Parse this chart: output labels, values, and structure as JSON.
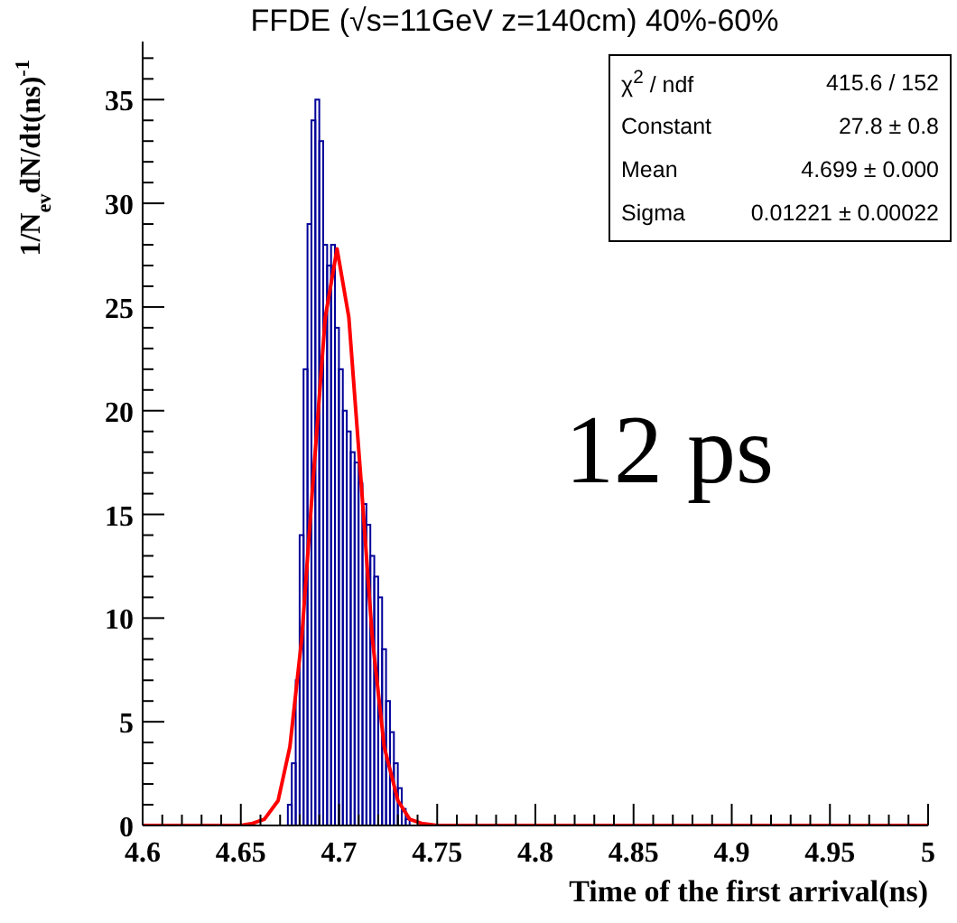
{
  "chart_data": {
    "type": "histogram",
    "title": "FFDE (√s=11GeV z=140cm) 40%-60%",
    "xlabel": "Time of the first arrival(ns)",
    "ylabel": "1/N$_{ev}$dN/dt(ns)$^{-1}$",
    "series": [
      {
        "type": "histogram",
        "color": "#000099",
        "bins": [
          4.674,
          4.676,
          4.678,
          4.68,
          4.682,
          4.684,
          4.686,
          4.688,
          4.69,
          4.692,
          4.694,
          4.696,
          4.698,
          4.7,
          4.702,
          4.704,
          4.706,
          4.708,
          4.71,
          4.712,
          4.714,
          4.716,
          4.718,
          4.72,
          4.722,
          4.724,
          4.726,
          4.728,
          4.73,
          4.732,
          4.734,
          4.736
        ],
        "values": [
          1,
          3,
          7,
          14,
          22,
          29,
          34,
          35,
          33,
          28,
          27,
          28,
          24,
          22,
          20,
          19,
          18,
          17.5,
          16.5,
          15.5,
          14.5,
          13,
          12,
          11,
          8.5,
          6,
          4.5,
          3,
          1.8,
          0.8,
          0.3
        ]
      },
      {
        "type": "line",
        "color": "#ff0000",
        "x": [
          4.6,
          4.65,
          4.656,
          4.662,
          4.669,
          4.675,
          4.681,
          4.687,
          4.693,
          4.699,
          4.705,
          4.711,
          4.717,
          4.723,
          4.73,
          4.736,
          4.742,
          4.75,
          5
        ],
        "values": [
          0,
          0,
          0.1,
          0.3,
          1.2,
          3.8,
          9,
          16.9,
          24.5,
          27.8,
          24.5,
          16.9,
          9,
          3.8,
          1.2,
          0.3,
          0.1,
          0,
          0
        ]
      }
    ],
    "xlim": [
      4.6,
      5
    ],
    "xticks": [
      4.6,
      {
        "value": 4.61,
        "label": null
      },
      {
        "value": 4.62,
        "label": null
      },
      {
        "value": 4.63,
        "label": null
      },
      {
        "value": 4.64,
        "label": null
      },
      4.65,
      {
        "value": 4.66,
        "label": null
      },
      {
        "value": 4.67,
        "label": null
      },
      {
        "value": 4.68,
        "label": null
      },
      {
        "value": 4.69,
        "label": null
      },
      4.7,
      {
        "value": 4.71,
        "label": null
      },
      {
        "value": 4.72,
        "label": null
      },
      {
        "value": 4.73,
        "label": null
      },
      {
        "value": 4.74,
        "label": null
      },
      4.75,
      {
        "value": 4.76,
        "label": null
      },
      {
        "value": 4.77,
        "label": null
      },
      {
        "value": 4.78,
        "label": null
      },
      {
        "value": 4.79,
        "label": null
      },
      4.8,
      {
        "value": 4.81,
        "label": null
      },
      {
        "value": 4.82,
        "label": null
      },
      {
        "value": 4.83,
        "label": null
      },
      {
        "value": 4.84,
        "label": null
      },
      4.85,
      {
        "value": 4.86,
        "label": null
      },
      {
        "value": 4.87,
        "label": null
      },
      {
        "value": 4.88,
        "label": null
      },
      {
        "value": 4.89,
        "label": null
      },
      4.9,
      {
        "value": 4.91,
        "label": null
      },
      {
        "value": 4.92,
        "label": null
      },
      {
        "value": 4.93,
        "label": null
      },
      {
        "value": 4.94,
        "label": null
      },
      4.95,
      {
        "value": 4.96,
        "label": null
      },
      {
        "value": 4.97,
        "label": null
      },
      {
        "value": 4.98,
        "label": null
      },
      {
        "value": 4.99,
        "label": null
      },
      5
    ],
    "ylim": [
      0,
      37.8
    ],
    "yticks": [
      0,
      {
        "value": 1,
        "label": null
      },
      {
        "value": 2,
        "label": null
      },
      {
        "value": 3,
        "label": null
      },
      {
        "value": 4,
        "label": null
      },
      5,
      {
        "value": 6,
        "label": null
      },
      {
        "value": 7,
        "label": null
      },
      {
        "value": 8,
        "label": null
      },
      {
        "value": 9,
        "label": null
      },
      10,
      {
        "value": 11,
        "label": null
      },
      {
        "value": 12,
        "label": null
      },
      {
        "value": 13,
        "label": null
      },
      {
        "value": 14,
        "label": null
      },
      15,
      {
        "value": 16,
        "label": null
      },
      {
        "value": 17,
        "label": null
      },
      {
        "value": 18,
        "label": null
      },
      {
        "value": 19,
        "label": null
      },
      20,
      {
        "value": 21,
        "label": null
      },
      {
        "value": 22,
        "label": null
      },
      {
        "value": 23,
        "label": null
      },
      {
        "value": 24,
        "label": null
      },
      25,
      {
        "value": 26,
        "label": null
      },
      {
        "value": 27,
        "label": null
      },
      {
        "value": 28,
        "label": null
      },
      {
        "value": 29,
        "label": null
      },
      30,
      {
        "value": 31,
        "label": null
      },
      {
        "value": 32,
        "label": null
      },
      {
        "value": 33,
        "label": null
      },
      {
        "value": 34,
        "label": null
      },
      35,
      {
        "value": 36,
        "label": null
      },
      {
        "value": 37,
        "label": null
      }
    ],
    "annotations": [
      "χ$^{2}$ / ndf",
      "415.6 / 152",
      "Constant",
      "27.8 ± 0.8",
      "Mean",
      "4.699 ± 0.000",
      "Sigma",
      "0.01221 ± 0.00022",
      "12 ps"
    ],
    "grid": false,
    "legend": false
  }
}
